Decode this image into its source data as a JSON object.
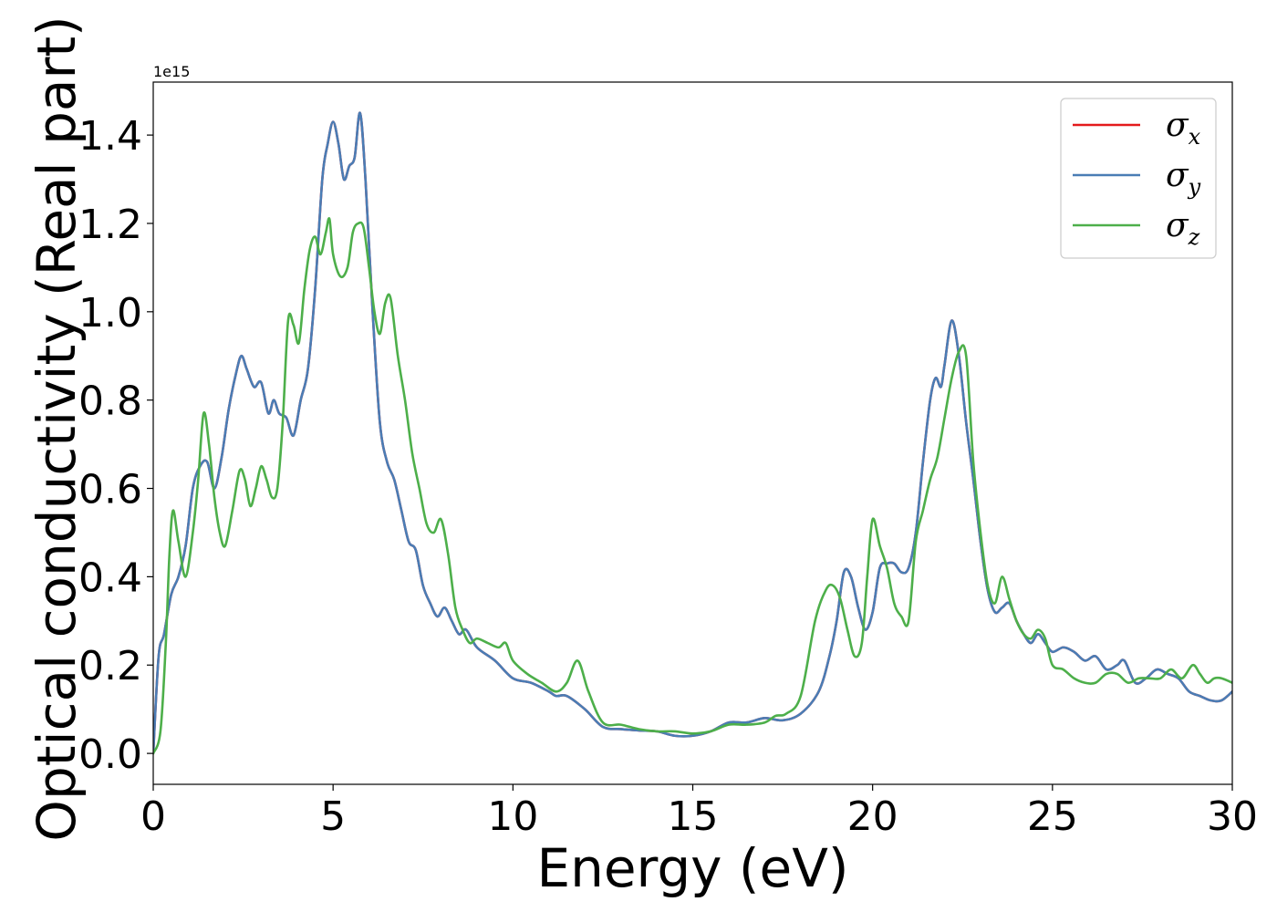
{
  "chart_data": {
    "type": "line",
    "xlabel": "Energy (eV)",
    "ylabel": "Optical conductivity (Real part)",
    "y_offset_label": "1e15",
    "xlim": [
      0,
      30
    ],
    "ylim": [
      -0.07,
      1.52
    ],
    "x_ticks": [
      0,
      5,
      10,
      15,
      20,
      25,
      30
    ],
    "x_tick_labels": [
      "0",
      "5",
      "10",
      "15",
      "20",
      "25",
      "30"
    ],
    "y_ticks": [
      0.0,
      0.2,
      0.4,
      0.6,
      0.8,
      1.0,
      1.2,
      1.4
    ],
    "y_tick_labels": [
      "0.0",
      "0.2",
      "0.4",
      "0.6",
      "0.8",
      "1.0",
      "1.2",
      "1.4"
    ],
    "grid": false,
    "legend_position": "top-right",
    "series": [
      {
        "name": "σx",
        "symbol": "σ",
        "subscript": "x",
        "color": "#e41a1c",
        "x": [
          0,
          0.15,
          0.3,
          0.5,
          0.7,
          0.9,
          1.1,
          1.3,
          1.5,
          1.7,
          1.9,
          2.1,
          2.3,
          2.45,
          2.6,
          2.8,
          3.0,
          3.2,
          3.35,
          3.5,
          3.7,
          3.9,
          4.1,
          4.3,
          4.5,
          4.7,
          4.85,
          5.0,
          5.15,
          5.3,
          5.45,
          5.6,
          5.75,
          5.9,
          6.1,
          6.3,
          6.5,
          6.7,
          6.9,
          7.1,
          7.3,
          7.5,
          7.7,
          7.9,
          8.1,
          8.3,
          8.5,
          8.7,
          9.0,
          9.5,
          10.0,
          10.5,
          11.0,
          11.2,
          11.5,
          12.0,
          12.5,
          13.0,
          13.5,
          14.0,
          14.5,
          15.0,
          15.5,
          16.0,
          16.5,
          17.0,
          17.5,
          18.0,
          18.5,
          18.8,
          19.0,
          19.2,
          19.4,
          19.6,
          19.8,
          20.0,
          20.2,
          20.4,
          20.6,
          20.8,
          21.0,
          21.2,
          21.4,
          21.6,
          21.75,
          21.9,
          22.0,
          22.2,
          22.4,
          22.6,
          22.8,
          23.0,
          23.2,
          23.4,
          23.6,
          23.8,
          24.0,
          24.2,
          24.4,
          24.6,
          24.8,
          25.0,
          25.3,
          25.6,
          25.9,
          26.2,
          26.5,
          26.8,
          27.0,
          27.3,
          27.6,
          27.9,
          28.2,
          28.5,
          28.8,
          29.1,
          29.4,
          29.7,
          30.0
        ],
        "values": [
          0.0,
          0.22,
          0.27,
          0.36,
          0.4,
          0.47,
          0.6,
          0.65,
          0.66,
          0.6,
          0.67,
          0.78,
          0.86,
          0.9,
          0.87,
          0.83,
          0.84,
          0.77,
          0.8,
          0.77,
          0.76,
          0.72,
          0.8,
          0.87,
          1.05,
          1.3,
          1.38,
          1.43,
          1.38,
          1.3,
          1.33,
          1.35,
          1.45,
          1.3,
          1.0,
          0.75,
          0.66,
          0.62,
          0.55,
          0.48,
          0.46,
          0.38,
          0.34,
          0.31,
          0.33,
          0.3,
          0.27,
          0.28,
          0.24,
          0.21,
          0.17,
          0.16,
          0.14,
          0.13,
          0.13,
          0.1,
          0.06,
          0.055,
          0.052,
          0.05,
          0.04,
          0.04,
          0.05,
          0.07,
          0.07,
          0.08,
          0.075,
          0.09,
          0.14,
          0.22,
          0.3,
          0.41,
          0.4,
          0.33,
          0.28,
          0.32,
          0.42,
          0.43,
          0.43,
          0.41,
          0.42,
          0.5,
          0.66,
          0.8,
          0.85,
          0.83,
          0.88,
          0.98,
          0.9,
          0.75,
          0.62,
          0.48,
          0.37,
          0.32,
          0.33,
          0.34,
          0.3,
          0.27,
          0.25,
          0.27,
          0.25,
          0.23,
          0.24,
          0.23,
          0.21,
          0.22,
          0.19,
          0.2,
          0.21,
          0.16,
          0.17,
          0.19,
          0.18,
          0.17,
          0.14,
          0.13,
          0.12,
          0.12,
          0.14
        ]
      },
      {
        "name": "σy",
        "symbol": "σ",
        "subscript": "y",
        "color": "#4a7db5",
        "x": [
          0,
          0.15,
          0.3,
          0.5,
          0.7,
          0.9,
          1.1,
          1.3,
          1.5,
          1.7,
          1.9,
          2.1,
          2.3,
          2.45,
          2.6,
          2.8,
          3.0,
          3.2,
          3.35,
          3.5,
          3.7,
          3.9,
          4.1,
          4.3,
          4.5,
          4.7,
          4.85,
          5.0,
          5.15,
          5.3,
          5.45,
          5.6,
          5.75,
          5.9,
          6.1,
          6.3,
          6.5,
          6.7,
          6.9,
          7.1,
          7.3,
          7.5,
          7.7,
          7.9,
          8.1,
          8.3,
          8.5,
          8.7,
          9.0,
          9.5,
          10.0,
          10.5,
          11.0,
          11.2,
          11.5,
          12.0,
          12.5,
          13.0,
          13.5,
          14.0,
          14.5,
          15.0,
          15.5,
          16.0,
          16.5,
          17.0,
          17.5,
          18.0,
          18.5,
          18.8,
          19.0,
          19.2,
          19.4,
          19.6,
          19.8,
          20.0,
          20.2,
          20.4,
          20.6,
          20.8,
          21.0,
          21.2,
          21.4,
          21.6,
          21.75,
          21.9,
          22.0,
          22.2,
          22.4,
          22.6,
          22.8,
          23.0,
          23.2,
          23.4,
          23.6,
          23.8,
          24.0,
          24.2,
          24.4,
          24.6,
          24.8,
          25.0,
          25.3,
          25.6,
          25.9,
          26.2,
          26.5,
          26.8,
          27.0,
          27.3,
          27.6,
          27.9,
          28.2,
          28.5,
          28.8,
          29.1,
          29.4,
          29.7,
          30.0
        ],
        "values": [
          0.0,
          0.22,
          0.27,
          0.36,
          0.4,
          0.47,
          0.6,
          0.65,
          0.66,
          0.6,
          0.67,
          0.78,
          0.86,
          0.9,
          0.87,
          0.83,
          0.84,
          0.77,
          0.8,
          0.77,
          0.76,
          0.72,
          0.8,
          0.87,
          1.05,
          1.3,
          1.38,
          1.43,
          1.38,
          1.3,
          1.33,
          1.35,
          1.45,
          1.3,
          1.0,
          0.75,
          0.66,
          0.62,
          0.55,
          0.48,
          0.46,
          0.38,
          0.34,
          0.31,
          0.33,
          0.3,
          0.27,
          0.28,
          0.24,
          0.21,
          0.17,
          0.16,
          0.14,
          0.13,
          0.13,
          0.1,
          0.06,
          0.055,
          0.052,
          0.05,
          0.04,
          0.04,
          0.05,
          0.07,
          0.07,
          0.08,
          0.075,
          0.09,
          0.14,
          0.22,
          0.3,
          0.41,
          0.4,
          0.33,
          0.28,
          0.32,
          0.42,
          0.43,
          0.43,
          0.41,
          0.42,
          0.5,
          0.66,
          0.8,
          0.85,
          0.83,
          0.88,
          0.98,
          0.9,
          0.75,
          0.62,
          0.48,
          0.37,
          0.32,
          0.33,
          0.34,
          0.3,
          0.27,
          0.25,
          0.27,
          0.25,
          0.23,
          0.24,
          0.23,
          0.21,
          0.22,
          0.19,
          0.2,
          0.21,
          0.16,
          0.17,
          0.19,
          0.18,
          0.17,
          0.14,
          0.13,
          0.12,
          0.12,
          0.14
        ]
      },
      {
        "name": "σz",
        "symbol": "σ",
        "subscript": "z",
        "color": "#4daf4a",
        "x": [
          0,
          0.2,
          0.35,
          0.45,
          0.55,
          0.7,
          0.9,
          1.1,
          1.25,
          1.4,
          1.55,
          1.7,
          1.85,
          2.0,
          2.2,
          2.4,
          2.55,
          2.7,
          2.85,
          3.0,
          3.15,
          3.3,
          3.45,
          3.6,
          3.75,
          3.9,
          4.05,
          4.2,
          4.35,
          4.5,
          4.65,
          4.8,
          4.9,
          5.0,
          5.2,
          5.4,
          5.55,
          5.7,
          5.85,
          6.0,
          6.15,
          6.3,
          6.45,
          6.6,
          6.8,
          7.0,
          7.2,
          7.4,
          7.6,
          7.8,
          8.0,
          8.2,
          8.4,
          8.6,
          8.8,
          9.0,
          9.3,
          9.6,
          9.8,
          10.0,
          10.4,
          10.8,
          11.2,
          11.5,
          11.8,
          12.1,
          12.5,
          13.0,
          13.5,
          14.0,
          14.5,
          15.0,
          15.5,
          16.0,
          16.5,
          17.0,
          17.3,
          17.6,
          18.0,
          18.4,
          18.7,
          18.9,
          19.1,
          19.3,
          19.5,
          19.7,
          19.85,
          20.0,
          20.2,
          20.4,
          20.6,
          20.8,
          21.0,
          21.2,
          21.4,
          21.6,
          21.8,
          22.0,
          22.2,
          22.4,
          22.6,
          22.8,
          23.0,
          23.2,
          23.4,
          23.6,
          23.8,
          24.0,
          24.2,
          24.4,
          24.6,
          24.8,
          25.0,
          25.3,
          25.6,
          25.9,
          26.2,
          26.5,
          26.8,
          27.1,
          27.4,
          27.7,
          28.0,
          28.3,
          28.6,
          28.9,
          29.1,
          29.3,
          29.5,
          29.7,
          30.0
        ],
        "values": [
          0.0,
          0.05,
          0.25,
          0.45,
          0.55,
          0.48,
          0.4,
          0.5,
          0.62,
          0.77,
          0.7,
          0.58,
          0.5,
          0.47,
          0.55,
          0.64,
          0.62,
          0.56,
          0.6,
          0.65,
          0.62,
          0.58,
          0.6,
          0.75,
          0.98,
          0.97,
          0.93,
          1.05,
          1.14,
          1.17,
          1.13,
          1.18,
          1.21,
          1.13,
          1.08,
          1.1,
          1.18,
          1.2,
          1.19,
          1.1,
          1.0,
          0.95,
          1.02,
          1.03,
          0.9,
          0.8,
          0.68,
          0.6,
          0.52,
          0.5,
          0.53,
          0.45,
          0.33,
          0.28,
          0.25,
          0.26,
          0.25,
          0.24,
          0.25,
          0.21,
          0.18,
          0.16,
          0.14,
          0.16,
          0.21,
          0.14,
          0.07,
          0.065,
          0.055,
          0.05,
          0.05,
          0.045,
          0.05,
          0.065,
          0.065,
          0.07,
          0.085,
          0.09,
          0.13,
          0.3,
          0.37,
          0.38,
          0.35,
          0.28,
          0.22,
          0.25,
          0.4,
          0.53,
          0.47,
          0.42,
          0.34,
          0.31,
          0.3,
          0.48,
          0.55,
          0.62,
          0.67,
          0.76,
          0.85,
          0.91,
          0.9,
          0.66,
          0.5,
          0.38,
          0.34,
          0.4,
          0.35,
          0.3,
          0.27,
          0.26,
          0.28,
          0.26,
          0.2,
          0.19,
          0.17,
          0.16,
          0.16,
          0.18,
          0.18,
          0.16,
          0.17,
          0.17,
          0.17,
          0.19,
          0.17,
          0.2,
          0.18,
          0.16,
          0.17,
          0.17,
          0.16
        ]
      }
    ]
  }
}
